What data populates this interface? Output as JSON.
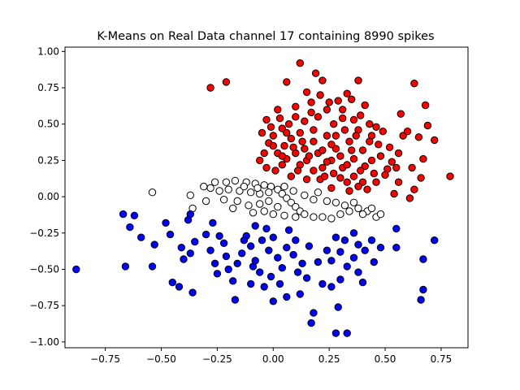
{
  "chart_data": {
    "type": "scatter",
    "title": "K-Means on Real Data channel 17 containing 8990 spikes",
    "xlabel": "",
    "ylabel": "",
    "xlim": [
      -0.93,
      0.87
    ],
    "ylim": [
      -1.04,
      1.03
    ],
    "xticks": [
      -0.75,
      -0.5,
      -0.25,
      0.0,
      0.25,
      0.5,
      0.75
    ],
    "xtick_labels": [
      "−0.75",
      "−0.50",
      "−0.25",
      "0.00",
      "0.25",
      "0.50",
      "0.75"
    ],
    "yticks": [
      -1.0,
      -0.75,
      -0.5,
      -0.25,
      0.0,
      0.25,
      0.5,
      0.75,
      1.0
    ],
    "ytick_labels": [
      "−1.00",
      "−0.75",
      "−0.50",
      "−0.25",
      "0.00",
      "0.25",
      "0.50",
      "0.75",
      "1.00"
    ],
    "grid": false,
    "series": [
      {
        "color": "#ff0000",
        "points": [
          [
            0.12,
            0.92
          ],
          [
            -0.28,
            0.75
          ],
          [
            -0.21,
            0.79
          ],
          [
            0.19,
            0.85
          ],
          [
            0.38,
            0.8
          ],
          [
            0.63,
            0.78
          ],
          [
            0.06,
            0.79
          ],
          [
            0.22,
            0.8
          ],
          [
            0.33,
            0.71
          ],
          [
            0.68,
            0.63
          ],
          [
            0.57,
            0.57
          ],
          [
            0.69,
            0.49
          ],
          [
            0.58,
            0.42
          ],
          [
            0.65,
            0.41
          ],
          [
            0.72,
            0.39
          ],
          [
            0.56,
            0.3
          ],
          [
            0.67,
            0.26
          ],
          [
            0.55,
            0.2
          ],
          [
            0.79,
            0.14
          ],
          [
            0.66,
            0.13
          ],
          [
            0.56,
            0.1
          ],
          [
            0.51,
            0.19
          ],
          [
            0.63,
            0.05
          ],
          [
            0.54,
            0.02
          ],
          [
            0.61,
            -0.01
          ],
          [
            0.42,
            0.05
          ],
          [
            0.34,
            0.04
          ],
          [
            0.26,
            0.06
          ],
          [
            0.21,
            0.12
          ],
          [
            0.44,
            0.25
          ],
          [
            0.47,
            0.36
          ],
          [
            0.44,
            0.42
          ],
          [
            0.46,
            0.48
          ],
          [
            0.39,
            0.56
          ],
          [
            0.31,
            0.6
          ],
          [
            0.24,
            0.6
          ],
          [
            0.17,
            0.65
          ],
          [
            0.1,
            0.55
          ],
          [
            0.02,
            0.6
          ],
          [
            -0.03,
            0.53
          ],
          [
            0.04,
            0.47
          ],
          [
            0.08,
            0.4
          ],
          [
            0.14,
            0.33
          ],
          [
            0.2,
            0.3
          ],
          [
            0.26,
            0.25
          ],
          [
            0.31,
            0.2
          ],
          [
            0.36,
            0.14
          ],
          [
            0.4,
            0.1
          ],
          [
            0.3,
            0.13
          ],
          [
            0.18,
            0.18
          ],
          [
            0.12,
            0.22
          ],
          [
            0.06,
            0.26
          ],
          [
            0.02,
            0.3
          ],
          [
            -0.02,
            0.37
          ],
          [
            -0.05,
            0.44
          ],
          [
            0.0,
            0.42
          ],
          [
            0.05,
            0.35
          ],
          [
            0.1,
            0.3
          ],
          [
            0.15,
            0.25
          ],
          [
            0.22,
            0.2
          ],
          [
            0.27,
            0.16
          ],
          [
            0.33,
            0.1
          ],
          [
            0.38,
            0.07
          ],
          [
            0.28,
            0.33
          ],
          [
            0.34,
            0.38
          ],
          [
            0.4,
            0.32
          ],
          [
            0.48,
            0.28
          ],
          [
            0.5,
            0.15
          ],
          [
            0.46,
            0.1
          ],
          [
            0.36,
            0.26
          ],
          [
            0.24,
            0.42
          ],
          [
            0.18,
            0.46
          ],
          [
            0.12,
            0.44
          ],
          [
            0.07,
            0.5
          ],
          [
            0.14,
            0.52
          ],
          [
            0.2,
            0.55
          ],
          [
            0.27,
            0.5
          ],
          [
            0.32,
            0.46
          ],
          [
            0.38,
            0.46
          ],
          [
            0.43,
            0.38
          ],
          [
            0.52,
            0.34
          ],
          [
            0.25,
            0.65
          ],
          [
            0.29,
            0.66
          ],
          [
            0.21,
            0.7
          ],
          [
            0.15,
            0.72
          ],
          [
            -0.06,
            0.25
          ],
          [
            -0.03,
            0.2
          ],
          [
            0.01,
            0.18
          ],
          [
            0.04,
            0.22
          ],
          [
            0.08,
            0.14
          ],
          [
            0.15,
            0.12
          ],
          [
            0.11,
            0.18
          ],
          [
            0.23,
            0.14
          ],
          [
            0.3,
            0.28
          ],
          [
            0.18,
            0.38
          ],
          [
            0.26,
            0.36
          ],
          [
            0.35,
            0.32
          ],
          [
            0.41,
            0.21
          ],
          [
            0.45,
            0.16
          ],
          [
            0.53,
            0.24
          ],
          [
            0.6,
            0.45
          ],
          [
            0.62,
            0.2
          ],
          [
            0.49,
            0.45
          ],
          [
            0.36,
            0.53
          ],
          [
            0.41,
            0.63
          ],
          [
            0.1,
            0.62
          ],
          [
            0.03,
            0.54
          ],
          [
            -0.01,
            0.48
          ],
          [
            0.06,
            0.44
          ],
          [
            0.13,
            0.38
          ],
          [
            0.22,
            0.32
          ],
          [
            0.24,
            0.24
          ],
          [
            0.33,
            0.22
          ],
          [
            0.39,
            0.18
          ],
          [
            0.16,
            0.28
          ],
          [
            0.09,
            0.34
          ],
          [
            0.04,
            0.28
          ],
          [
            -0.04,
            0.3
          ],
          [
            0.0,
            0.35
          ],
          [
            0.28,
            0.42
          ],
          [
            0.17,
            0.58
          ],
          [
            0.35,
            0.67
          ],
          [
            0.31,
            0.54
          ],
          [
            0.43,
            0.5
          ],
          [
            0.37,
            0.42
          ]
        ]
      },
      {
        "color": "#ffffff",
        "points": [
          [
            -0.54,
            0.03
          ],
          [
            -0.37,
            0.01
          ],
          [
            -0.31,
            0.07
          ],
          [
            -0.26,
            0.1
          ],
          [
            -0.21,
            0.1
          ],
          [
            -0.17,
            0.11
          ],
          [
            -0.12,
            0.1
          ],
          [
            -0.08,
            0.09
          ],
          [
            -0.04,
            0.08
          ],
          [
            -0.01,
            0.07
          ],
          [
            0.02,
            0.05
          ],
          [
            0.04,
            0.02
          ],
          [
            0.06,
            -0.01
          ],
          [
            0.08,
            -0.04
          ],
          [
            0.1,
            -0.07
          ],
          [
            0.12,
            -0.1
          ],
          [
            0.14,
            -0.12
          ],
          [
            0.18,
            -0.14
          ],
          [
            0.22,
            -0.14
          ],
          [
            0.26,
            -0.15
          ],
          [
            0.3,
            -0.12
          ],
          [
            0.34,
            -0.1
          ],
          [
            0.38,
            -0.08
          ],
          [
            0.42,
            -0.1
          ],
          [
            0.46,
            -0.14
          ],
          [
            0.48,
            -0.12
          ],
          [
            0.24,
            -0.03
          ],
          [
            0.18,
            -0.02
          ],
          [
            0.2,
            0.03
          ],
          [
            0.14,
            0.01
          ],
          [
            0.09,
            0.04
          ],
          [
            0.05,
            0.07
          ],
          [
            -0.02,
            0.03
          ],
          [
            -0.06,
            0.02
          ],
          [
            -0.1,
            0.03
          ],
          [
            -0.15,
            0.04
          ],
          [
            -0.2,
            0.05
          ],
          [
            -0.24,
            0.04
          ],
          [
            -0.28,
            0.06
          ],
          [
            -0.36,
            -0.08
          ],
          [
            -0.3,
            -0.03
          ],
          [
            -0.22,
            -0.02
          ],
          [
            -0.16,
            -0.03
          ],
          [
            -0.11,
            -0.06
          ],
          [
            -0.06,
            -0.05
          ],
          [
            -0.02,
            -0.03
          ],
          [
            0.02,
            -0.07
          ],
          [
            -0.04,
            -0.1
          ],
          [
            -0.09,
            -0.11
          ],
          [
            0.0,
            -0.12
          ],
          [
            0.05,
            -0.13
          ],
          [
            0.1,
            -0.14
          ],
          [
            0.28,
            -0.04
          ],
          [
            0.32,
            -0.06
          ],
          [
            0.36,
            -0.04
          ],
          [
            0.4,
            -0.12
          ],
          [
            0.44,
            -0.08
          ],
          [
            -0.18,
            -0.08
          ],
          [
            -0.13,
            0.07
          ],
          [
            -0.07,
            0.06
          ]
        ]
      },
      {
        "color": "#0000ff",
        "points": [
          [
            -0.88,
            -0.5
          ],
          [
            -0.66,
            -0.48
          ],
          [
            -0.67,
            -0.12
          ],
          [
            -0.62,
            -0.13
          ],
          [
            -0.64,
            -0.21
          ],
          [
            -0.59,
            -0.28
          ],
          [
            -0.54,
            -0.48
          ],
          [
            -0.53,
            -0.33
          ],
          [
            -0.48,
            -0.18
          ],
          [
            -0.46,
            -0.26
          ],
          [
            -0.45,
            -0.59
          ],
          [
            -0.42,
            -0.62
          ],
          [
            -0.36,
            -0.66
          ],
          [
            -0.4,
            -0.43
          ],
          [
            -0.41,
            -0.35
          ],
          [
            -0.37,
            -0.39
          ],
          [
            -0.35,
            -0.31
          ],
          [
            -0.38,
            -0.16
          ],
          [
            -0.37,
            -0.12
          ],
          [
            -0.3,
            -0.26
          ],
          [
            -0.28,
            -0.37
          ],
          [
            -0.26,
            -0.46
          ],
          [
            -0.25,
            -0.53
          ],
          [
            -0.27,
            -0.18
          ],
          [
            -0.24,
            -0.27
          ],
          [
            -0.21,
            -0.41
          ],
          [
            -0.2,
            -0.5
          ],
          [
            -0.18,
            -0.58
          ],
          [
            -0.17,
            -0.71
          ],
          [
            -0.14,
            -0.39
          ],
          [
            -0.12,
            -0.27
          ],
          [
            -0.1,
            -0.34
          ],
          [
            -0.08,
            -0.44
          ],
          [
            -0.06,
            -0.52
          ],
          [
            -0.04,
            -0.62
          ],
          [
            -0.02,
            -0.37
          ],
          [
            0.0,
            -0.28
          ],
          [
            0.02,
            -0.42
          ],
          [
            0.04,
            -0.49
          ],
          [
            -0.03,
            -0.22
          ],
          [
            -0.08,
            -0.2
          ],
          [
            0.07,
            -0.23
          ],
          [
            0.1,
            -0.3
          ],
          [
            0.13,
            -0.46
          ],
          [
            0.15,
            -0.56
          ],
          [
            0.12,
            -0.67
          ],
          [
            0.06,
            -0.69
          ],
          [
            0.0,
            -0.72
          ],
          [
            -0.1,
            -0.6
          ],
          [
            0.18,
            -0.8
          ],
          [
            0.17,
            -0.87
          ],
          [
            0.28,
            -0.94
          ],
          [
            0.33,
            -0.94
          ],
          [
            0.29,
            -0.76
          ],
          [
            0.3,
            -0.57
          ],
          [
            0.33,
            -0.48
          ],
          [
            0.38,
            -0.52
          ],
          [
            0.36,
            -0.42
          ],
          [
            0.41,
            -0.37
          ],
          [
            0.44,
            -0.3
          ],
          [
            0.48,
            -0.35
          ],
          [
            0.45,
            -0.45
          ],
          [
            0.4,
            -0.59
          ],
          [
            0.26,
            -0.62
          ],
          [
            0.22,
            -0.6
          ],
          [
            0.2,
            -0.45
          ],
          [
            0.24,
            -0.37
          ],
          [
            0.28,
            -0.28
          ],
          [
            0.32,
            -0.3
          ],
          [
            0.36,
            -0.25
          ],
          [
            0.55,
            -0.22
          ],
          [
            0.55,
            -0.35
          ],
          [
            0.72,
            -0.3
          ],
          [
            0.67,
            -0.43
          ],
          [
            0.67,
            -0.64
          ],
          [
            0.66,
            -0.71
          ],
          [
            -0.01,
            -0.55
          ],
          [
            -0.05,
            -0.3
          ],
          [
            -0.13,
            -0.3
          ],
          [
            0.06,
            -0.35
          ],
          [
            0.09,
            -0.4
          ],
          [
            0.16,
            -0.34
          ],
          [
            0.26,
            -0.44
          ],
          [
            0.3,
            -0.38
          ],
          [
            -0.22,
            -0.32
          ],
          [
            -0.16,
            -0.46
          ],
          [
            0.03,
            -0.6
          ],
          [
            -0.09,
            -0.48
          ],
          [
            0.11,
            -0.52
          ],
          [
            0.38,
            -0.33
          ]
        ]
      }
    ]
  }
}
